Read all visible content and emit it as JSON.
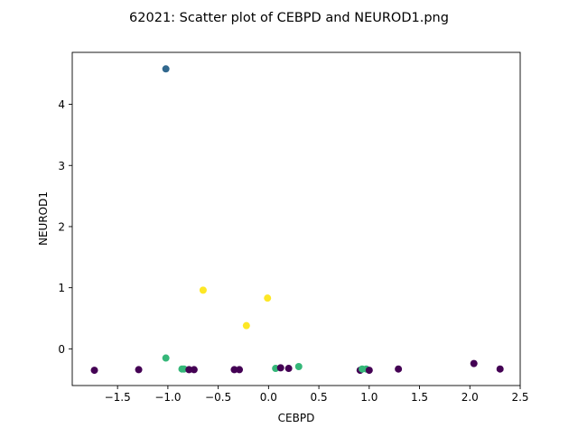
{
  "chart_data": {
    "type": "scatter",
    "title": "62021: Scatter plot of CEBPD and NEUROD1.png",
    "xlabel": "CEBPD",
    "ylabel": "NEUROD1",
    "xlim": [
      -1.95,
      2.5
    ],
    "ylim": [
      -0.6,
      4.85
    ],
    "xticks": [
      -1.5,
      -1.0,
      -0.5,
      0.0,
      0.5,
      1.0,
      1.5,
      2.0,
      2.5
    ],
    "xtick_labels": [
      "−1.5",
      "−1.0",
      "−0.5",
      "0.0",
      "0.5",
      "1.0",
      "1.5",
      "2.0",
      "2.5"
    ],
    "yticks": [
      0,
      1,
      2,
      3,
      4
    ],
    "ytick_labels": [
      "0",
      "1",
      "2",
      "3",
      "4"
    ],
    "grid": false,
    "colors": {
      "purple": "#440154",
      "blue": "#31688e",
      "green": "#35b779",
      "yellow": "#fde725"
    },
    "points": [
      {
        "x": -1.73,
        "y": -0.35,
        "c": "purple"
      },
      {
        "x": -1.29,
        "y": -0.34,
        "c": "purple"
      },
      {
        "x": -1.02,
        "y": 4.58,
        "c": "blue"
      },
      {
        "x": -1.02,
        "y": -0.15,
        "c": "green"
      },
      {
        "x": -0.86,
        "y": -0.33,
        "c": "green"
      },
      {
        "x": -0.84,
        "y": -0.33,
        "c": "green"
      },
      {
        "x": -0.79,
        "y": -0.34,
        "c": "purple"
      },
      {
        "x": -0.74,
        "y": -0.34,
        "c": "purple"
      },
      {
        "x": -0.65,
        "y": 0.96,
        "c": "yellow"
      },
      {
        "x": -0.34,
        "y": -0.34,
        "c": "purple"
      },
      {
        "x": -0.29,
        "y": -0.34,
        "c": "purple"
      },
      {
        "x": -0.22,
        "y": 0.38,
        "c": "yellow"
      },
      {
        "x": -0.01,
        "y": 0.83,
        "c": "yellow"
      },
      {
        "x": 0.07,
        "y": -0.32,
        "c": "green"
      },
      {
        "x": 0.12,
        "y": -0.31,
        "c": "purple"
      },
      {
        "x": 0.2,
        "y": -0.32,
        "c": "purple"
      },
      {
        "x": 0.3,
        "y": -0.29,
        "c": "green"
      },
      {
        "x": 0.91,
        "y": -0.35,
        "c": "purple"
      },
      {
        "x": 0.93,
        "y": -0.33,
        "c": "green"
      },
      {
        "x": 0.97,
        "y": -0.33,
        "c": "green"
      },
      {
        "x": 1.0,
        "y": -0.35,
        "c": "purple"
      },
      {
        "x": 1.29,
        "y": -0.33,
        "c": "purple"
      },
      {
        "x": 2.04,
        "y": -0.24,
        "c": "purple"
      },
      {
        "x": 2.3,
        "y": -0.33,
        "c": "purple"
      }
    ]
  }
}
